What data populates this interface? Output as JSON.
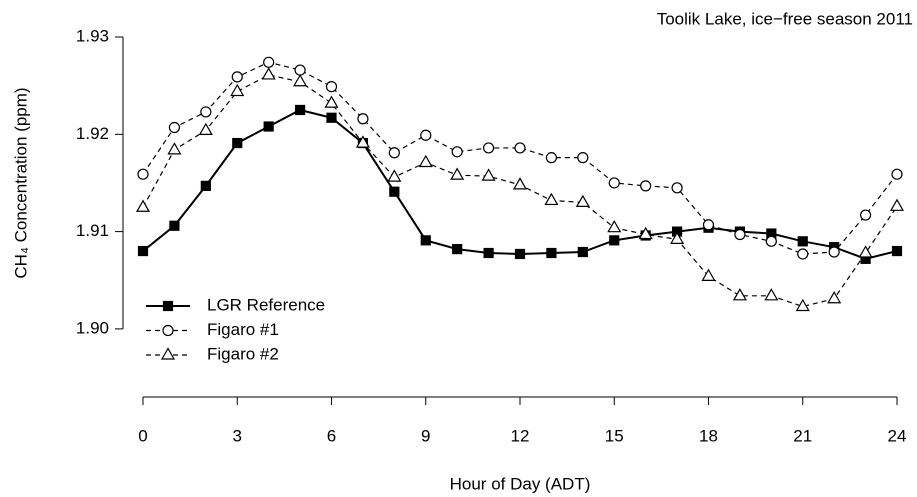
{
  "chart_data": {
    "type": "line",
    "annotation": "Toolik Lake, ice−free season 2011",
    "xlabel": "Hour of Day (ADT)",
    "ylabel": "CH₄ Concentration (ppm)",
    "x": [
      0,
      1,
      2,
      3,
      4,
      5,
      6,
      7,
      8,
      9,
      10,
      11,
      12,
      13,
      14,
      15,
      16,
      17,
      18,
      19,
      20,
      21,
      22,
      23,
      24
    ],
    "series": [
      {
        "name": "LGR Reference",
        "color": "#000000",
        "marker": "square",
        "linestyle": "solid",
        "values": [
          1.908,
          1.9106,
          1.9147,
          1.9191,
          1.9208,
          1.9225,
          1.9217,
          1.9191,
          1.9141,
          1.9091,
          1.9082,
          1.9078,
          1.9077,
          1.9078,
          1.9079,
          1.9091,
          1.9096,
          1.91,
          1.9104,
          1.91,
          1.9098,
          1.909,
          1.9084,
          1.9072,
          1.908
        ]
      },
      {
        "name": "Figaro #1",
        "color": "#000000",
        "marker": "circle",
        "linestyle": "dashed",
        "values": [
          1.9159,
          1.9207,
          1.9223,
          1.9259,
          1.9274,
          1.9266,
          1.9249,
          1.9216,
          1.9181,
          1.9199,
          1.9182,
          1.9186,
          1.9186,
          1.9176,
          1.9176,
          1.915,
          1.9147,
          1.9145,
          1.9107,
          1.9097,
          1.909,
          1.9077,
          1.9079,
          1.9117,
          1.9159
        ]
      },
      {
        "name": "Figaro #2",
        "color": "#000000",
        "marker": "triangle",
        "linestyle": "dashed",
        "values": [
          1.9125,
          1.9184,
          1.9204,
          1.9244,
          1.9261,
          1.9254,
          1.9232,
          1.9191,
          1.9156,
          1.9171,
          1.9158,
          1.9157,
          1.9148,
          1.9132,
          1.913,
          1.9104,
          1.9097,
          1.9092,
          1.9054,
          1.9034,
          1.9034,
          1.9023,
          1.9031,
          1.9078,
          1.9126
        ]
      }
    ],
    "xlim": [
      0,
      24
    ],
    "xticks": [
      0,
      3,
      6,
      9,
      12,
      15,
      18,
      21,
      24
    ],
    "ylim": [
      1.893,
      1.93
    ],
    "yticks": [
      {
        "value": 1.9,
        "label": "1.90"
      },
      1.91,
      1.92,
      1.93
    ],
    "grid": false,
    "legend": "lower left"
  }
}
